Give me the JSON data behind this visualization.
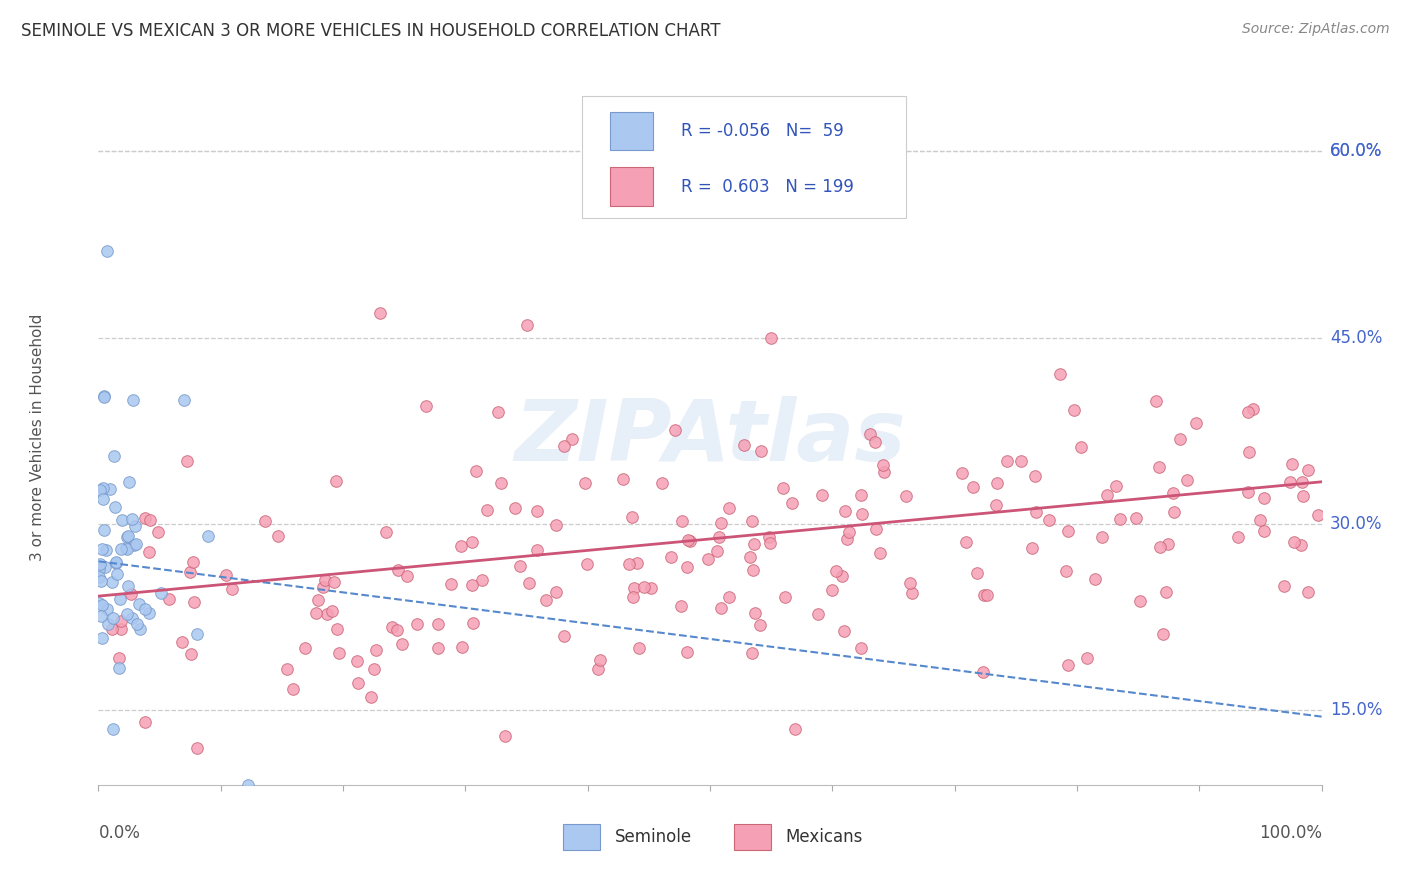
{
  "title": "SEMINOLE VS MEXICAN 3 OR MORE VEHICLES IN HOUSEHOLD CORRELATION CHART",
  "source": "Source: ZipAtlas.com",
  "ylabel": "3 or more Vehicles in Household",
  "yticks": [
    0.15,
    0.3,
    0.45,
    0.6
  ],
  "ytick_labels": [
    "15.0%",
    "30.0%",
    "45.0%",
    "60.0%"
  ],
  "xmin": 0,
  "xmax": 100,
  "ymin": 0.09,
  "ymax": 0.65,
  "seminole_R": -0.056,
  "seminole_N": 59,
  "mexican_R": 0.603,
  "mexican_N": 199,
  "seminole_color": "#aac8f0",
  "seminole_edge_color": "#7799cc",
  "seminole_line_color": "#5588cc",
  "mexican_color": "#f5a0b5",
  "mexican_edge_color": "#cc6677",
  "mexican_line_color": "#cc5577",
  "legend_label1": "Seminole",
  "legend_label2": "Mexicans",
  "watermark": "ZIPAtlas",
  "bg_color": "#ffffff",
  "grid_color": "#cccccc",
  "axis_color": "#555555",
  "tick_color": "#4466cc",
  "title_color": "#333333",
  "source_color": "#888888",
  "legend_text_color": "#3355bb"
}
